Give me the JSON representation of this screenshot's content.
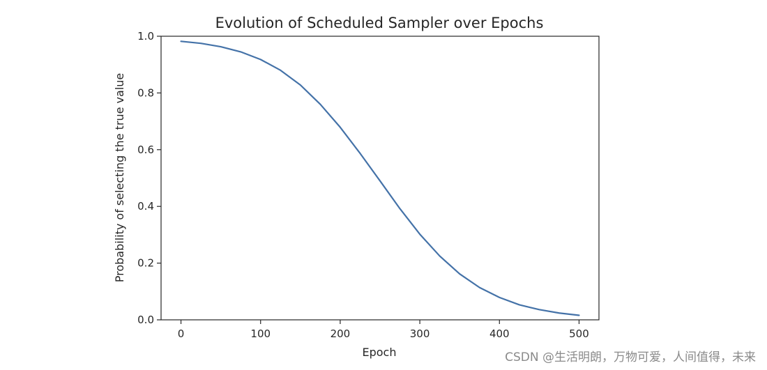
{
  "chart_data": {
    "type": "line",
    "title": "Evolution of Scheduled Sampler over Epochs",
    "xlabel": "Epoch",
    "ylabel": "Probability of selecting the true value",
    "xlim": [
      -25,
      525
    ],
    "ylim": [
      0.0,
      1.0
    ],
    "x_ticks": [
      0,
      100,
      200,
      300,
      400,
      500
    ],
    "x_tick_labels": [
      "0",
      "100",
      "200",
      "300",
      "400",
      "500"
    ],
    "y_ticks": [
      0.0,
      0.2,
      0.4,
      0.6,
      0.8,
      1.0
    ],
    "y_tick_labels": [
      "0.0",
      "0.2",
      "0.4",
      "0.6",
      "0.8",
      "1.0"
    ],
    "grid": false,
    "series": [
      {
        "color": "#4472a8",
        "x": [
          0,
          25,
          50,
          75,
          100,
          125,
          150,
          175,
          200,
          225,
          250,
          275,
          300,
          325,
          350,
          375,
          400,
          425,
          450,
          475,
          500
        ],
        "y": [
          0.982,
          0.975,
          0.963,
          0.945,
          0.918,
          0.88,
          0.828,
          0.76,
          0.679,
          0.587,
          0.49,
          0.392,
          0.302,
          0.225,
          0.162,
          0.114,
          0.079,
          0.053,
          0.036,
          0.024,
          0.016
        ]
      }
    ]
  },
  "watermark": "CSDN @生活明朗，万物可爱，人间值得，未来"
}
